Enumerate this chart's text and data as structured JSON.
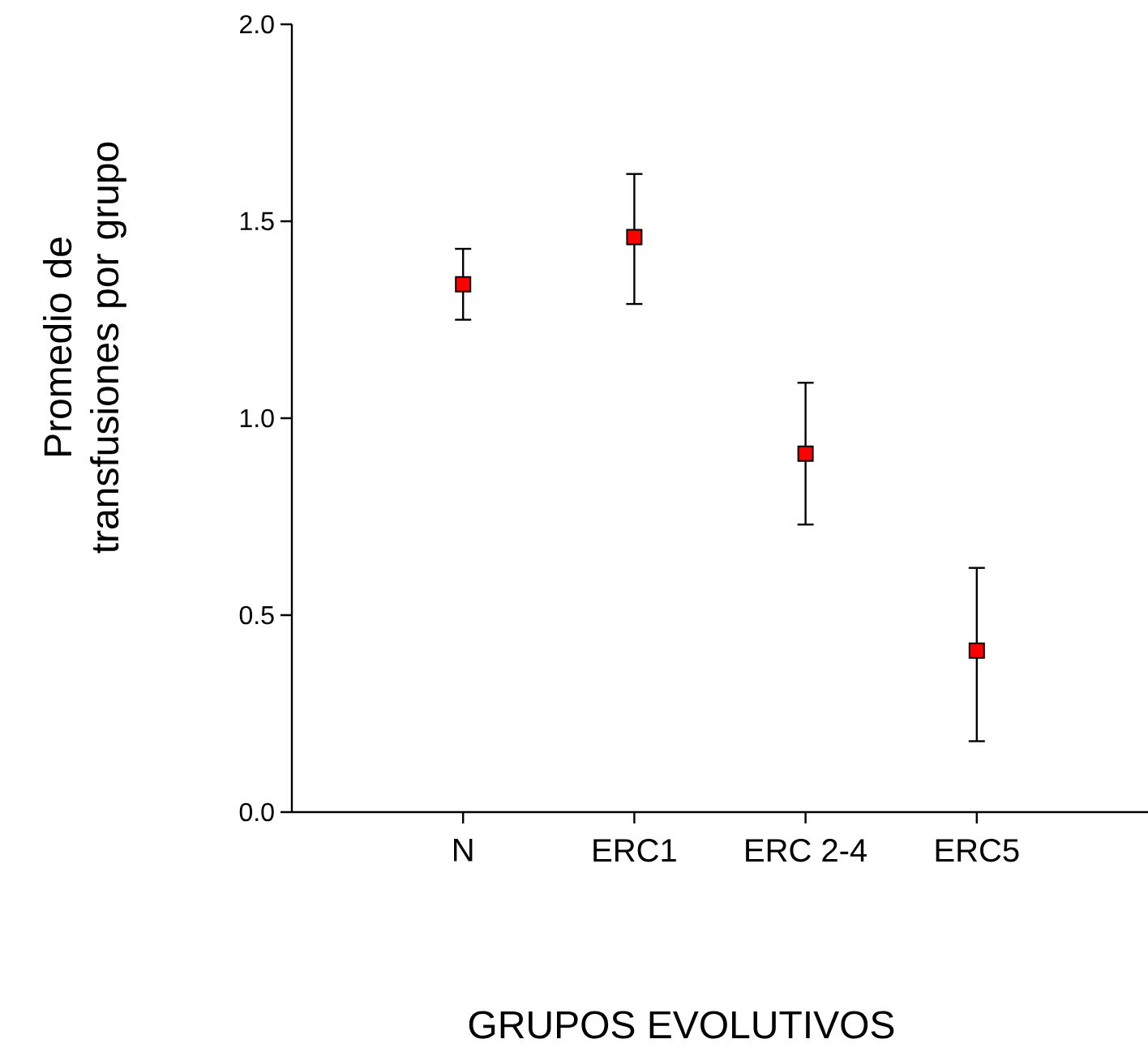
{
  "chart_data": {
    "type": "scatter",
    "xlabel": "GRUPOS EVOLUTIVOS",
    "ylabel": "Promedio de transfusiones por grupo",
    "categories": [
      "N",
      "ERC1",
      "ERC 2-4",
      "ERC5"
    ],
    "values": [
      1.34,
      1.46,
      0.91,
      0.41
    ],
    "errors": [
      [
        1.25,
        1.43
      ],
      [
        1.29,
        1.62
      ],
      [
        0.73,
        1.09
      ],
      [
        0.18,
        0.62
      ]
    ],
    "color": "#ff0000",
    "marker": "square",
    "grid": false,
    "ylim": [
      0,
      2
    ],
    "yticks": [
      {
        "value": 0,
        "label": "0.0"
      },
      {
        "value": 0.5,
        "label": "0.5"
      },
      {
        "value": 1,
        "label": "1.0"
      },
      {
        "value": 1.5,
        "label": "1.5"
      },
      {
        "value": 2,
        "label": "2.0"
      }
    ]
  }
}
